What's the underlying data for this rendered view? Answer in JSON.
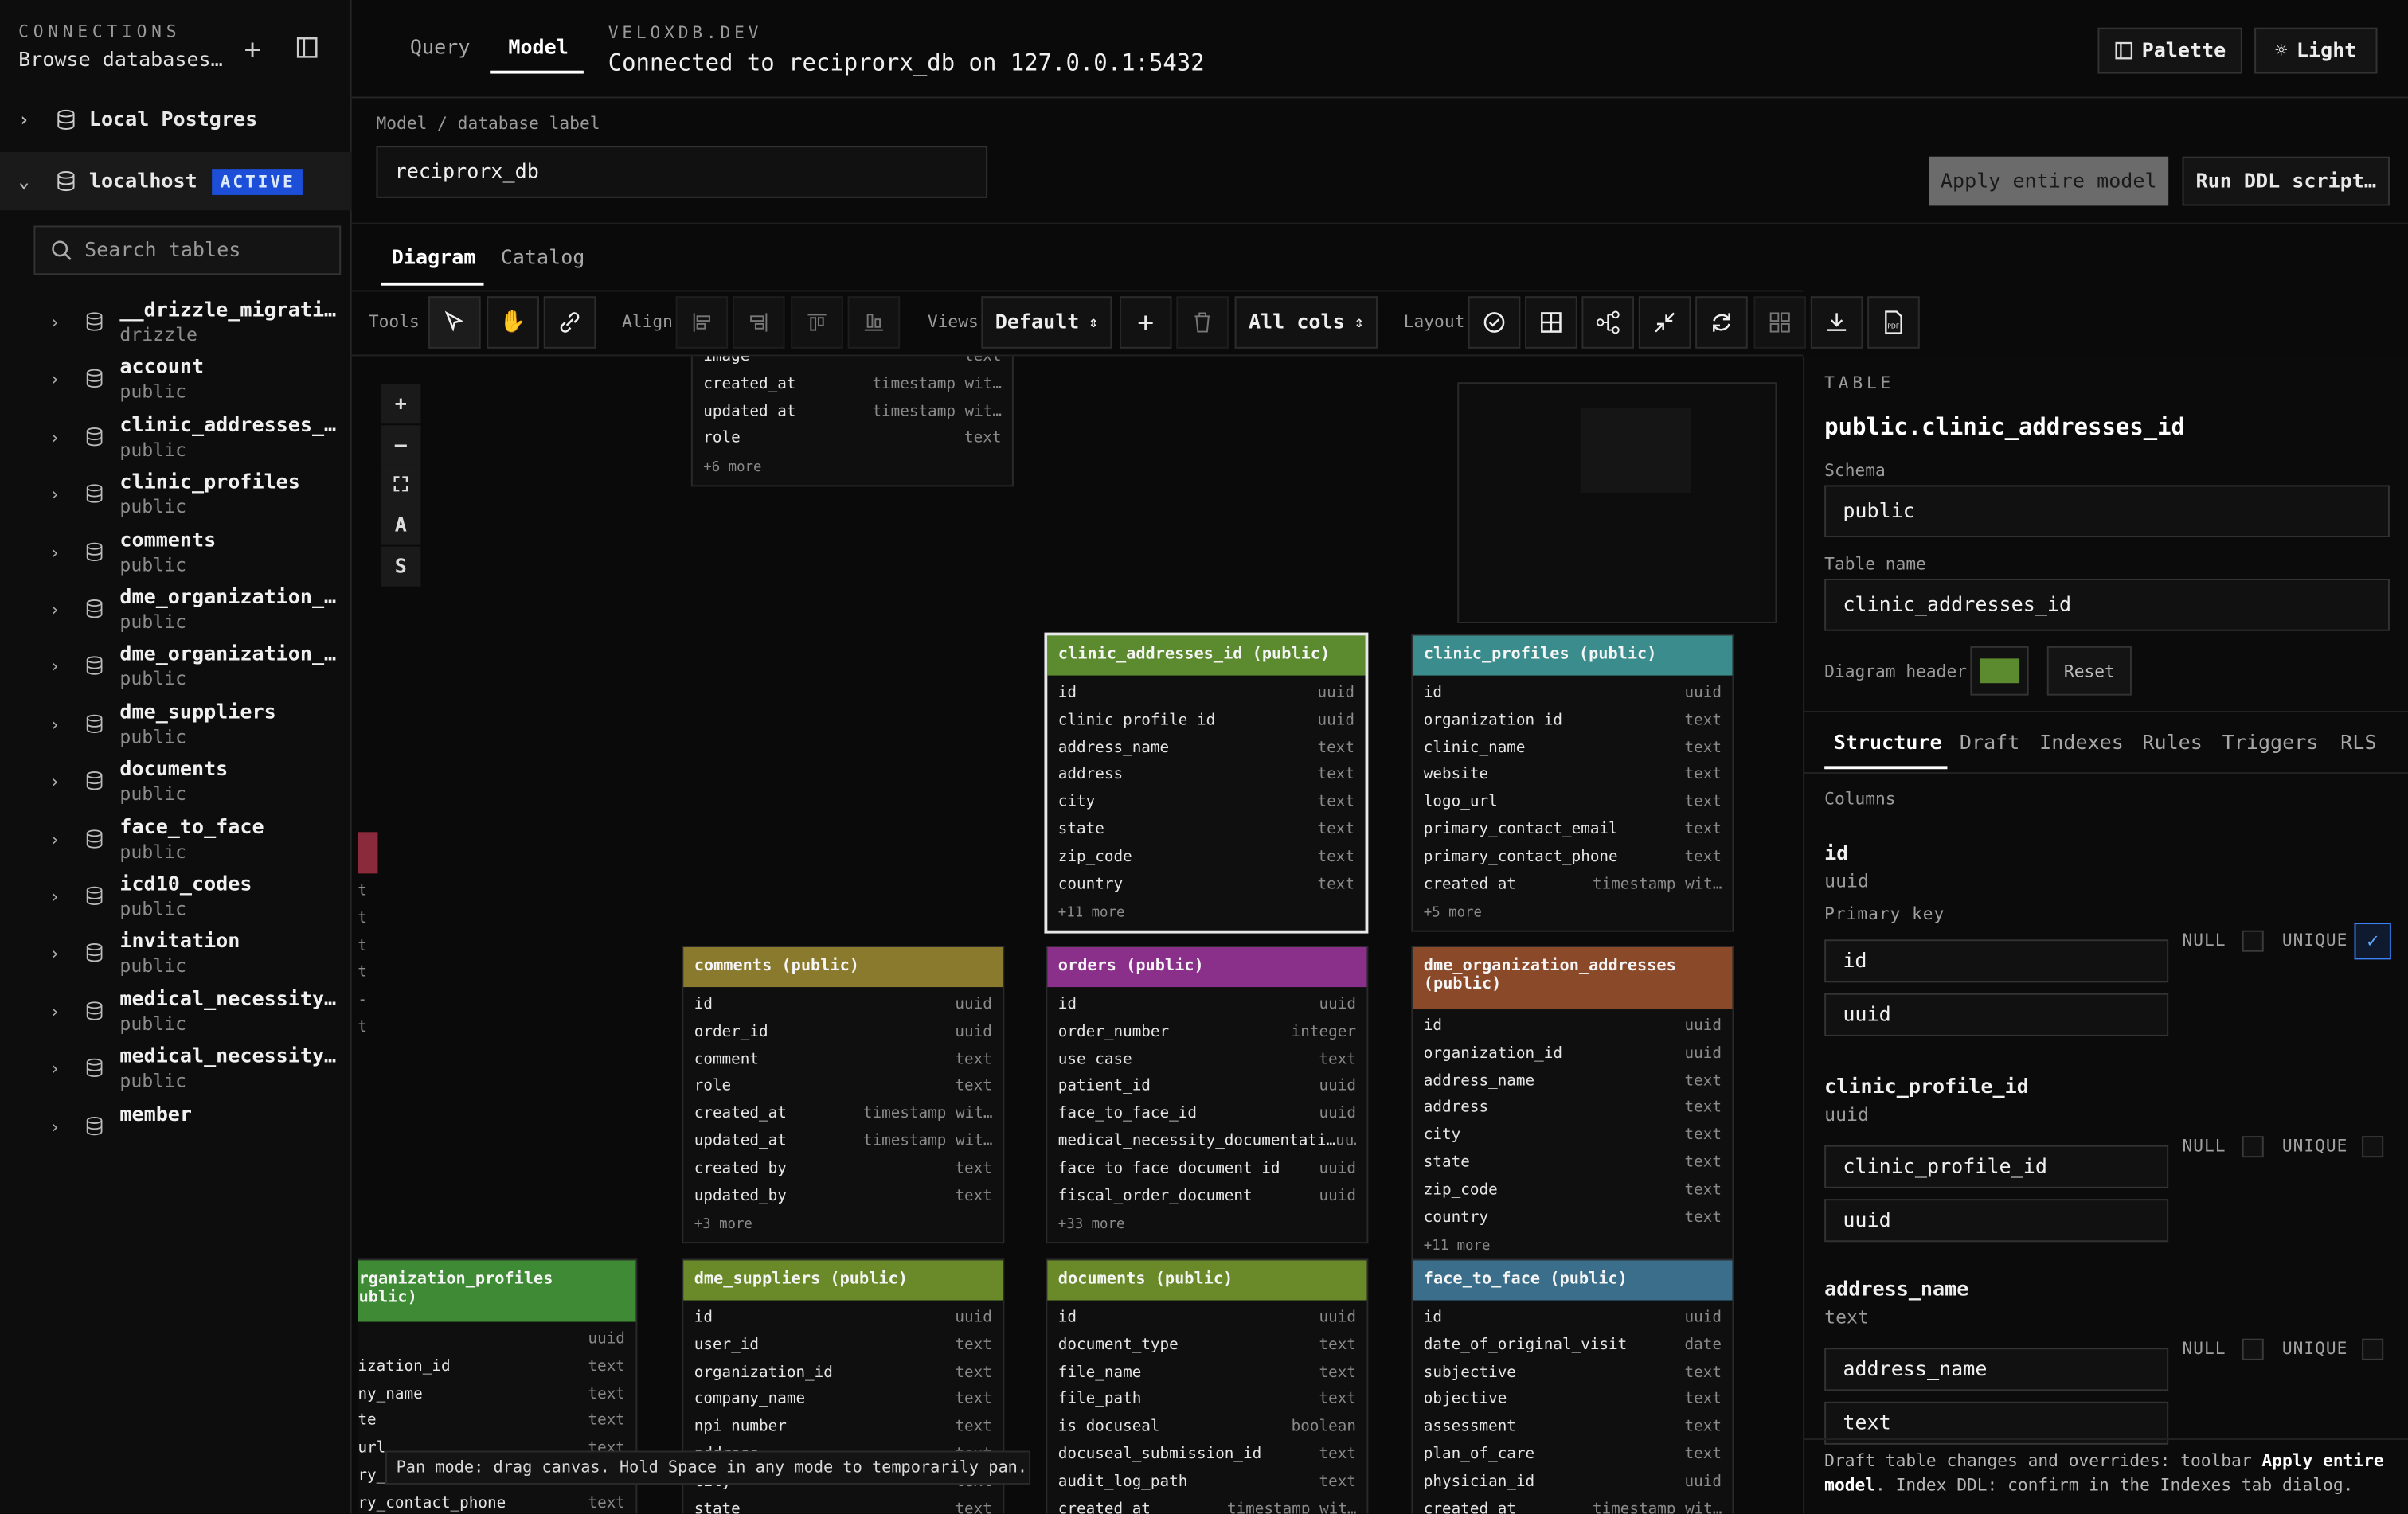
{
  "sidebar": {
    "heading": "CONNECTIONS",
    "subheading": "Browse databases…",
    "connections": [
      {
        "label": "Local Postgres",
        "expanded": false
      },
      {
        "label": "localhost",
        "badge": "ACTIVE",
        "expanded": true
      }
    ],
    "search_placeholder": "Search tables",
    "tables": [
      {
        "name": "__drizzle_migrati…",
        "schema": "drizzle"
      },
      {
        "name": "account",
        "schema": "public"
      },
      {
        "name": "clinic_addresses_…",
        "schema": "public"
      },
      {
        "name": "clinic_profiles",
        "schema": "public"
      },
      {
        "name": "comments",
        "schema": "public"
      },
      {
        "name": "dme_organization_…",
        "schema": "public"
      },
      {
        "name": "dme_organization_…",
        "schema": "public"
      },
      {
        "name": "dme_suppliers",
        "schema": "public"
      },
      {
        "name": "documents",
        "schema": "public"
      },
      {
        "name": "face_to_face",
        "schema": "public"
      },
      {
        "name": "icd10_codes",
        "schema": "public"
      },
      {
        "name": "invitation",
        "schema": "public"
      },
      {
        "name": "medical_necessity…",
        "schema": "public"
      },
      {
        "name": "medical_necessity…",
        "schema": "public"
      },
      {
        "name": "member",
        "schema": ""
      }
    ]
  },
  "header": {
    "tabs": [
      "Query",
      "Model"
    ],
    "active_tab": "Model",
    "app_name": "VELOXDB.DEV",
    "status": "Connected to reciprorx_db on 127.0.0.1:5432",
    "palette_label": "Palette",
    "theme_label": "Light"
  },
  "model": {
    "label_caption": "Model / database label",
    "label_value": "reciprorx_db",
    "apply_label": "Apply entire model",
    "run_ddl_label": "Run DDL script…"
  },
  "canvas_tabs": [
    "Diagram",
    "Catalog"
  ],
  "toolbar": {
    "tools_label": "Tools",
    "align_label": "Align",
    "views_label": "Views",
    "views_value": "Default",
    "cols_value": "All cols",
    "layout_label": "Layout"
  },
  "zoom_controls": [
    "+",
    "—",
    "⛶",
    "A",
    "S"
  ],
  "hint": "Pan mode: drag canvas. Hold Space in any mode to temporarily pan.",
  "tables_on_canvas": [
    {
      "id": "user",
      "header": "",
      "color": "#1a1a1a",
      "rows": [
        [
          "image",
          "text"
        ],
        [
          "created_at",
          "timestamp wit…"
        ],
        [
          "updated_at",
          "timestamp wit…"
        ],
        [
          "role",
          "text"
        ]
      ],
      "more": "+6 more"
    },
    {
      "id": "clinic_addresses_id",
      "header": "clinic_addresses_id (public)",
      "color": "#5b8a2f",
      "rows": [
        [
          "id",
          "uuid"
        ],
        [
          "clinic_profile_id",
          "uuid"
        ],
        [
          "address_name",
          "text"
        ],
        [
          "address",
          "text"
        ],
        [
          "city",
          "text"
        ],
        [
          "state",
          "text"
        ],
        [
          "zip_code",
          "text"
        ],
        [
          "country",
          "text"
        ]
      ],
      "more": "+11 more"
    },
    {
      "id": "clinic_profiles",
      "header": "clinic_profiles (public)",
      "color": "#3b8c8c",
      "rows": [
        [
          "id",
          "uuid"
        ],
        [
          "organization_id",
          "text"
        ],
        [
          "clinic_name",
          "text"
        ],
        [
          "website",
          "text"
        ],
        [
          "logo_url",
          "text"
        ],
        [
          "primary_contact_email",
          "text"
        ],
        [
          "primary_contact_phone",
          "text"
        ],
        [
          "created_at",
          "timestamp wit…"
        ]
      ],
      "more": "+5 more"
    },
    {
      "id": "comments",
      "header": "comments (public)",
      "color": "#8a7a2e",
      "rows": [
        [
          "id",
          "uuid"
        ],
        [
          "order_id",
          "uuid"
        ],
        [
          "comment",
          "text"
        ],
        [
          "role",
          "text"
        ],
        [
          "created_at",
          "timestamp wit…"
        ],
        [
          "updated_at",
          "timestamp wit…"
        ],
        [
          "created_by",
          "text"
        ],
        [
          "updated_by",
          "text"
        ]
      ],
      "more": "+3 more"
    },
    {
      "id": "orders",
      "header": "orders (public)",
      "color": "#8a2f8a",
      "rows": [
        [
          "id",
          "uuid"
        ],
        [
          "order_number",
          "integer"
        ],
        [
          "use_case",
          "text"
        ],
        [
          "patient_id",
          "uuid"
        ],
        [
          "face_to_face_id",
          "uuid"
        ],
        [
          "medical_necessity_documentati…",
          "uu…"
        ],
        [
          "face_to_face_document_id",
          "uuid"
        ],
        [
          "fiscal_order_document",
          "uuid"
        ]
      ],
      "more": "+33 more"
    },
    {
      "id": "dme_organization_addresses",
      "header": "dme_organization_addresses (public)",
      "color": "#8a4a2a",
      "rows": [
        [
          "id",
          "uuid"
        ],
        [
          "organization_id",
          "uuid"
        ],
        [
          "address_name",
          "text"
        ],
        [
          "address",
          "text"
        ],
        [
          "city",
          "text"
        ],
        [
          "state",
          "text"
        ],
        [
          "zip_code",
          "text"
        ],
        [
          "country",
          "text"
        ]
      ],
      "more": "+11 more"
    },
    {
      "id": "dme_organization_profiles",
      "header": "_organization_profiles (public)",
      "color": "#3f8a35",
      "rows": [
        [
          "",
          "uuid"
        ],
        [
          "anization_id",
          "text"
        ],
        [
          "pany_name",
          "text"
        ],
        [
          "site",
          "text"
        ],
        [
          "o_url",
          "text"
        ],
        [
          "mary_contact_email",
          "text"
        ],
        [
          "mary_contact_phone",
          "text"
        ]
      ],
      "more": ""
    },
    {
      "id": "dme_suppliers",
      "header": "dme_suppliers (public)",
      "color": "#6a8a2a",
      "rows": [
        [
          "id",
          "uuid"
        ],
        [
          "user_id",
          "text"
        ],
        [
          "organization_id",
          "text"
        ],
        [
          "company_name",
          "text"
        ],
        [
          "npi_number",
          "text"
        ],
        [
          "address",
          "text"
        ],
        [
          "city",
          "text"
        ],
        [
          "state",
          "text"
        ]
      ],
      "more": ""
    },
    {
      "id": "documents",
      "header": "documents (public)",
      "color": "#6a8a2a",
      "rows": [
        [
          "id",
          "uuid"
        ],
        [
          "document_type",
          "text"
        ],
        [
          "file_name",
          "text"
        ],
        [
          "file_path",
          "text"
        ],
        [
          "is_docuseal",
          "boolean"
        ],
        [
          "docuseal_submission_id",
          "text"
        ],
        [
          "audit_log_path",
          "text"
        ],
        [
          "created_at",
          "timestamp wit…"
        ]
      ],
      "more": ""
    },
    {
      "id": "face_to_face",
      "header": "face_to_face (public)",
      "color": "#3a6e8a",
      "rows": [
        [
          "id",
          "uuid"
        ],
        [
          "date_of_original_visit",
          "date"
        ],
        [
          "subjective",
          "text"
        ],
        [
          "objective",
          "text"
        ],
        [
          "assessment",
          "text"
        ],
        [
          "plan_of_care",
          "text"
        ],
        [
          "physician_id",
          "uuid"
        ],
        [
          "created_at",
          "timestamp wit…"
        ]
      ],
      "more": ""
    }
  ],
  "panel": {
    "kicker": "TABLE",
    "title": "public.clinic_addresses_id",
    "schema_label": "Schema",
    "schema_value": "public",
    "table_name_label": "Table name",
    "table_name_value": "clinic_addresses_id",
    "header_color_label": "Diagram header",
    "header_color": "#5b8a2f",
    "reset_label": "Reset",
    "tabs": [
      "Structure",
      "Draft",
      "Indexes",
      "Rules",
      "Triggers",
      "RLS"
    ],
    "columns_label": "Columns",
    "columns": [
      {
        "name": "id",
        "type": "uuid",
        "primary": "Primary key",
        "name_value": "id",
        "type_value": "uuid",
        "null": false,
        "unique": true
      },
      {
        "name": "clinic_profile_id",
        "type": "uuid",
        "primary": "",
        "name_value": "clinic_profile_id",
        "type_value": "uuid",
        "null": false,
        "unique": false
      },
      {
        "name": "address_name",
        "type": "text",
        "primary": "",
        "name_value": "address_name",
        "type_value": "text",
        "null": false,
        "unique": false
      }
    ],
    "null_label": "NULL",
    "unique_label": "UNIQUE",
    "footer_a": "Draft table changes and overrides: toolbar ",
    "footer_b": "Apply entire model",
    "footer_c": ". Index DDL: confirm in the Indexes tab dialog."
  }
}
